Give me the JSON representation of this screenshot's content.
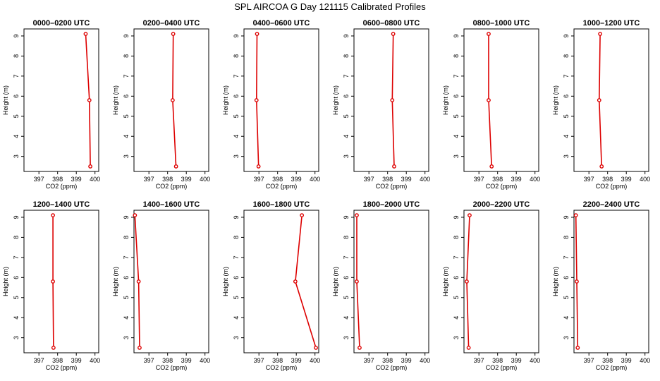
{
  "title": "SPL AIRCOA G  Day 121115  Calibrated Profiles",
  "chart_data": [
    {
      "type": "line",
      "title": "0000–0200 UTC",
      "xlabel": "CO2 (ppm)",
      "ylabel": "Height (m)",
      "xlim": [
        396.2,
        400.2
      ],
      "ylim": [
        2.25,
        9.35
      ],
      "xticks": [
        397,
        398,
        399,
        400
      ],
      "yticks": [
        3,
        4,
        5,
        6,
        7,
        8,
        9
      ],
      "color": "#dd0000",
      "points": [
        {
          "x": 399.5,
          "y": 9.1
        },
        {
          "x": 399.7,
          "y": 5.8
        },
        {
          "x": 399.75,
          "y": 2.5
        }
      ]
    },
    {
      "type": "line",
      "title": "0200–0400 UTC",
      "xlabel": "CO2 (ppm)",
      "ylabel": "Height (m)",
      "xlim": [
        396.2,
        400.2
      ],
      "ylim": [
        2.25,
        9.35
      ],
      "xticks": [
        397,
        398,
        399,
        400
      ],
      "yticks": [
        3,
        4,
        5,
        6,
        7,
        8,
        9
      ],
      "color": "#dd0000",
      "points": [
        {
          "x": 398.3,
          "y": 9.1
        },
        {
          "x": 398.27,
          "y": 5.8
        },
        {
          "x": 398.45,
          "y": 2.5
        }
      ]
    },
    {
      "type": "line",
      "title": "0400–0600 UTC",
      "xlabel": "CO2 (ppm)",
      "ylabel": "Height (m)",
      "xlim": [
        396.2,
        400.2
      ],
      "ylim": [
        2.25,
        9.35
      ],
      "xticks": [
        397,
        398,
        399,
        400
      ],
      "yticks": [
        3,
        4,
        5,
        6,
        7,
        8,
        9
      ],
      "color": "#dd0000",
      "points": [
        {
          "x": 396.9,
          "y": 9.1
        },
        {
          "x": 396.87,
          "y": 5.8
        },
        {
          "x": 396.98,
          "y": 2.5
        }
      ]
    },
    {
      "type": "line",
      "title": "0600–0800 UTC",
      "xlabel": "CO2 (ppm)",
      "ylabel": "Height (m)",
      "xlim": [
        396.2,
        400.2
      ],
      "ylim": [
        2.25,
        9.35
      ],
      "xticks": [
        397,
        398,
        399,
        400
      ],
      "yticks": [
        3,
        4,
        5,
        6,
        7,
        8,
        9
      ],
      "color": "#dd0000",
      "points": [
        {
          "x": 398.3,
          "y": 9.1
        },
        {
          "x": 398.25,
          "y": 5.8
        },
        {
          "x": 398.35,
          "y": 2.5
        }
      ]
    },
    {
      "type": "line",
      "title": "0800–1000 UTC",
      "xlabel": "CO2 (ppm)",
      "ylabel": "Height (m)",
      "xlim": [
        396.2,
        400.2
      ],
      "ylim": [
        2.25,
        9.35
      ],
      "xticks": [
        397,
        398,
        399,
        400
      ],
      "yticks": [
        3,
        4,
        5,
        6,
        7,
        8,
        9
      ],
      "color": "#dd0000",
      "points": [
        {
          "x": 397.52,
          "y": 9.1
        },
        {
          "x": 397.52,
          "y": 5.8
        },
        {
          "x": 397.68,
          "y": 2.5
        }
      ]
    },
    {
      "type": "line",
      "title": "1000–1200 UTC",
      "xlabel": "CO2 (ppm)",
      "ylabel": "Height (m)",
      "xlim": [
        396.2,
        400.2
      ],
      "ylim": [
        2.25,
        9.35
      ],
      "xticks": [
        397,
        398,
        399,
        400
      ],
      "yticks": [
        3,
        4,
        5,
        6,
        7,
        8,
        9
      ],
      "color": "#dd0000",
      "points": [
        {
          "x": 397.6,
          "y": 9.1
        },
        {
          "x": 397.55,
          "y": 5.8
        },
        {
          "x": 397.68,
          "y": 2.5
        }
      ]
    },
    {
      "type": "line",
      "title": "1200–1400 UTC",
      "xlabel": "CO2 (ppm)",
      "ylabel": "Height (m)",
      "xlim": [
        396.2,
        400.2
      ],
      "ylim": [
        2.25,
        9.35
      ],
      "xticks": [
        397,
        398,
        399,
        400
      ],
      "yticks": [
        3,
        4,
        5,
        6,
        7,
        8,
        9
      ],
      "color": "#dd0000",
      "points": [
        {
          "x": 397.75,
          "y": 9.1
        },
        {
          "x": 397.75,
          "y": 5.8
        },
        {
          "x": 397.78,
          "y": 2.5
        }
      ]
    },
    {
      "type": "line",
      "title": "1400–1600 UTC",
      "xlabel": "CO2 (ppm)",
      "ylabel": "Height (m)",
      "xlim": [
        396.2,
        400.2
      ],
      "ylim": [
        2.25,
        9.35
      ],
      "xticks": [
        397,
        398,
        399,
        400
      ],
      "yticks": [
        3,
        4,
        5,
        6,
        7,
        8,
        9
      ],
      "color": "#dd0000",
      "points": [
        {
          "x": 396.25,
          "y": 9.1
        },
        {
          "x": 396.45,
          "y": 5.8
        },
        {
          "x": 396.5,
          "y": 2.5
        }
      ]
    },
    {
      "type": "line",
      "title": "1600–1800 UTC",
      "xlabel": "CO2 (ppm)",
      "ylabel": "Height (m)",
      "xlim": [
        396.2,
        400.2
      ],
      "ylim": [
        2.25,
        9.35
      ],
      "xticks": [
        397,
        398,
        399,
        400
      ],
      "yticks": [
        3,
        4,
        5,
        6,
        7,
        8,
        9
      ],
      "color": "#dd0000",
      "points": [
        {
          "x": 399.3,
          "y": 9.1
        },
        {
          "x": 398.95,
          "y": 5.8
        },
        {
          "x": 400.05,
          "y": 2.5
        }
      ]
    },
    {
      "type": "line",
      "title": "1800–2000 UTC",
      "xlabel": "CO2 (ppm)",
      "ylabel": "Height (m)",
      "xlim": [
        396.2,
        400.2
      ],
      "ylim": [
        2.25,
        9.35
      ],
      "xticks": [
        397,
        398,
        399,
        400
      ],
      "yticks": [
        3,
        4,
        5,
        6,
        7,
        8,
        9
      ],
      "color": "#dd0000",
      "points": [
        {
          "x": 396.35,
          "y": 9.1
        },
        {
          "x": 396.35,
          "y": 5.8
        },
        {
          "x": 396.5,
          "y": 2.5
        }
      ]
    },
    {
      "type": "line",
      "title": "2000–2200 UTC",
      "xlabel": "CO2 (ppm)",
      "ylabel": "Height (m)",
      "xlim": [
        396.2,
        400.2
      ],
      "ylim": [
        2.25,
        9.35
      ],
      "xticks": [
        397,
        398,
        399,
        400
      ],
      "yticks": [
        3,
        4,
        5,
        6,
        7,
        8,
        9
      ],
      "color": "#dd0000",
      "points": [
        {
          "x": 396.5,
          "y": 9.1
        },
        {
          "x": 396.35,
          "y": 5.8
        },
        {
          "x": 396.45,
          "y": 2.5
        }
      ]
    },
    {
      "type": "line",
      "title": "2200–2400 UTC",
      "xlabel": "CO2 (ppm)",
      "ylabel": "Height (m)",
      "xlim": [
        396.2,
        400.2
      ],
      "ylim": [
        2.25,
        9.35
      ],
      "xticks": [
        397,
        398,
        399,
        400
      ],
      "yticks": [
        3,
        4,
        5,
        6,
        7,
        8,
        9
      ],
      "color": "#dd0000",
      "points": [
        {
          "x": 396.3,
          "y": 9.1
        },
        {
          "x": 396.35,
          "y": 5.8
        },
        {
          "x": 396.4,
          "y": 2.5
        }
      ]
    }
  ]
}
